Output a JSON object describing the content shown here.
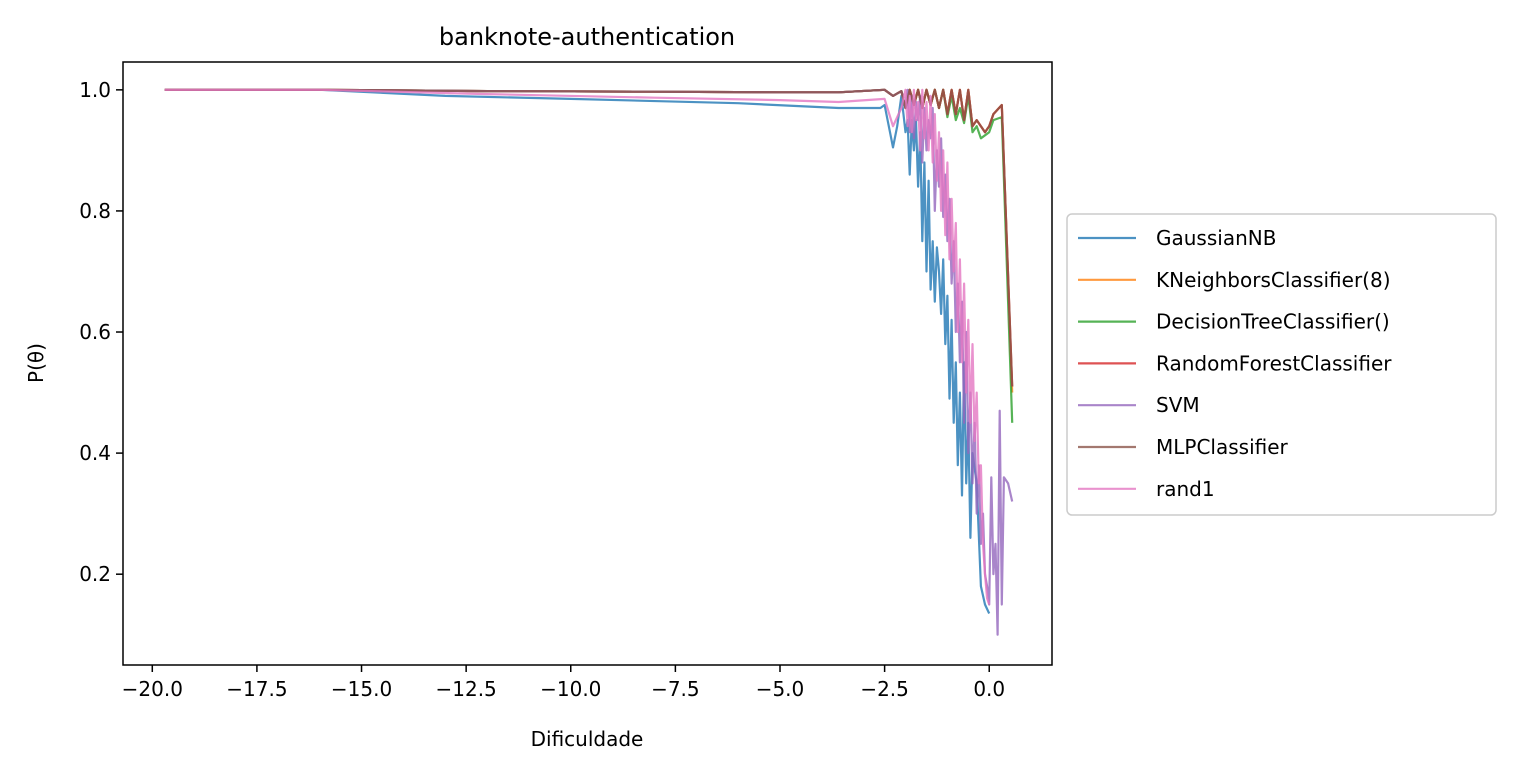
{
  "chart_data": {
    "type": "line",
    "title": "banknote-authentication",
    "xlabel": "Dificuldade",
    "ylabel": "P(θ)",
    "xlim": [
      -20.7,
      1.5
    ],
    "ylim": [
      0.05,
      1.046
    ],
    "xticks": [
      -20.0,
      -17.5,
      -15.0,
      -12.5,
      -10.0,
      -7.5,
      -5.0,
      -2.5,
      0.0
    ],
    "xtick_labels": [
      "−20.0",
      "−17.5",
      "−15.0",
      "−12.5",
      "−10.0",
      "−7.5",
      "−5.0",
      "−2.5",
      "0.0"
    ],
    "yticks": [
      0.2,
      0.4,
      0.6,
      0.8,
      1.0
    ],
    "ytick_labels": [
      "0.2",
      "0.4",
      "0.6",
      "0.8",
      "1.0"
    ],
    "grid": false,
    "legend_position": "right-outside",
    "series": [
      {
        "name": "GaussianNB",
        "color": "#1f77b4",
        "x": [
          -19.7,
          -16.0,
          -13.0,
          -10.0,
          -6.0,
          -3.6,
          -2.6,
          -2.5,
          -2.3,
          -2.2,
          -2.1,
          -2.0,
          -1.95,
          -1.9,
          -1.85,
          -1.8,
          -1.75,
          -1.7,
          -1.65,
          -1.6,
          -1.55,
          -1.5,
          -1.45,
          -1.4,
          -1.35,
          -1.3,
          -1.25,
          -1.2,
          -1.15,
          -1.1,
          -1.05,
          -1.0,
          -0.95,
          -0.9,
          -0.85,
          -0.8,
          -0.75,
          -0.7,
          -0.65,
          -0.6,
          -0.55,
          -0.5,
          -0.45,
          -0.4,
          -0.3,
          -0.2,
          -0.1,
          0.0
        ],
        "y": [
          1.0,
          1.0,
          0.99,
          0.985,
          0.978,
          0.97,
          0.97,
          0.975,
          0.905,
          0.94,
          0.99,
          0.93,
          0.95,
          0.86,
          0.95,
          0.9,
          0.95,
          0.84,
          0.93,
          0.75,
          0.88,
          0.7,
          0.85,
          0.67,
          0.75,
          0.65,
          0.74,
          0.7,
          0.63,
          0.72,
          0.58,
          0.66,
          0.49,
          0.62,
          0.45,
          0.55,
          0.38,
          0.5,
          0.33,
          0.55,
          0.35,
          0.45,
          0.26,
          0.4,
          0.35,
          0.18,
          0.15,
          0.135
        ]
      },
      {
        "name": "KNeighborsClassifier(8)",
        "color": "#ff7f0e",
        "x": [
          -19.7,
          -16.0,
          -12.0,
          -8.0,
          -5.0,
          -3.6,
          -2.5,
          -2.3,
          -2.1,
          -2.0,
          -1.9,
          -1.8,
          -1.7,
          -1.6,
          -1.5,
          -1.4,
          -1.3,
          -1.2,
          -1.1,
          -1.0,
          -0.9,
          -0.8,
          -0.7,
          -0.6,
          -0.5,
          -0.4,
          -0.3,
          -0.2,
          -0.1,
          0.0,
          0.1,
          0.3,
          0.55
        ],
        "y": [
          1.0,
          1.0,
          0.998,
          0.997,
          0.996,
          0.996,
          1.0,
          0.99,
          0.998,
          0.97,
          1.0,
          0.975,
          1.0,
          0.97,
          1.0,
          0.975,
          1.0,
          0.97,
          1.0,
          0.96,
          1.0,
          0.96,
          1.0,
          0.95,
          1.0,
          0.94,
          0.95,
          0.94,
          0.93,
          0.94,
          0.96,
          0.975,
          0.5
        ]
      },
      {
        "name": "DecisionTreeClassifier()",
        "color": "#2ca02c",
        "x": [
          -19.7,
          -16.0,
          -12.0,
          -8.0,
          -5.0,
          -3.6,
          -2.5,
          -2.3,
          -2.1,
          -2.0,
          -1.9,
          -1.8,
          -1.7,
          -1.6,
          -1.5,
          -1.4,
          -1.3,
          -1.2,
          -1.1,
          -1.0,
          -0.9,
          -0.8,
          -0.7,
          -0.6,
          -0.5,
          -0.4,
          -0.3,
          -0.2,
          -0.1,
          0.0,
          0.1,
          0.3,
          0.55
        ],
        "y": [
          1.0,
          1.0,
          0.998,
          0.997,
          0.996,
          0.996,
          1.0,
          0.99,
          0.998,
          0.97,
          1.0,
          0.975,
          1.0,
          0.97,
          1.0,
          0.975,
          1.0,
          0.97,
          1.0,
          0.955,
          0.99,
          0.95,
          0.97,
          0.945,
          0.99,
          0.93,
          0.94,
          0.92,
          0.925,
          0.93,
          0.95,
          0.955,
          0.45
        ]
      },
      {
        "name": "RandomForestClassifier",
        "color": "#d62728",
        "x": [
          -19.7,
          -16.0,
          -12.0,
          -8.0,
          -5.0,
          -3.6,
          -2.5,
          -2.3,
          -2.1,
          -2.0,
          -1.9,
          -1.8,
          -1.7,
          -1.6,
          -1.5,
          -1.4,
          -1.3,
          -1.2,
          -1.1,
          -1.0,
          -0.9,
          -0.8,
          -0.7,
          -0.6,
          -0.5,
          -0.4,
          -0.3,
          -0.2,
          -0.1,
          0.0,
          0.1,
          0.3,
          0.55
        ],
        "y": [
          1.0,
          1.0,
          0.998,
          0.997,
          0.996,
          0.996,
          1.0,
          0.99,
          0.998,
          0.97,
          1.0,
          0.975,
          1.0,
          0.97,
          1.0,
          0.975,
          1.0,
          0.97,
          1.0,
          0.96,
          1.0,
          0.96,
          1.0,
          0.95,
          1.0,
          0.94,
          0.95,
          0.94,
          0.93,
          0.94,
          0.96,
          0.975,
          0.51
        ]
      },
      {
        "name": "SVM",
        "color": "#9467bd",
        "x": [
          -19.7,
          -16.0,
          -12.0,
          -8.0,
          -5.0,
          -3.6,
          -2.5,
          -2.3,
          -2.1,
          -2.0,
          -1.95,
          -1.9,
          -1.85,
          -1.8,
          -1.75,
          -1.7,
          -1.65,
          -1.6,
          -1.55,
          -1.5,
          -1.45,
          -1.4,
          -1.35,
          -1.3,
          -1.25,
          -1.2,
          -1.15,
          -1.1,
          -1.05,
          -1.0,
          -0.95,
          -0.9,
          -0.85,
          -0.8,
          -0.75,
          -0.7,
          -0.65,
          -0.6,
          -0.55,
          -0.5,
          -0.45,
          -0.4,
          -0.35,
          -0.3,
          -0.25,
          -0.2,
          -0.15,
          -0.1,
          -0.05,
          0.0,
          0.05,
          0.1,
          0.15,
          0.2,
          0.25,
          0.3,
          0.35,
          0.45,
          0.55
        ],
        "y": [
          1.0,
          1.0,
          0.998,
          0.997,
          0.996,
          0.996,
          1.0,
          0.99,
          0.998,
          0.97,
          1.0,
          0.93,
          0.99,
          0.92,
          0.98,
          0.95,
          0.99,
          0.88,
          0.97,
          0.9,
          0.95,
          0.92,
          0.97,
          0.8,
          0.9,
          0.84,
          0.92,
          0.79,
          0.86,
          0.75,
          0.82,
          0.68,
          0.75,
          0.6,
          0.68,
          0.55,
          0.65,
          0.45,
          0.6,
          0.4,
          0.5,
          0.35,
          0.45,
          0.3,
          0.38,
          0.25,
          0.3,
          0.2,
          0.18,
          0.15,
          0.36,
          0.2,
          0.25,
          0.1,
          0.47,
          0.15,
          0.36,
          0.35,
          0.32
        ]
      },
      {
        "name": "MLPClassifier",
        "color": "#8c564b",
        "x": [
          -19.7,
          -16.0,
          -12.0,
          -8.0,
          -5.0,
          -3.6,
          -2.5,
          -2.3,
          -2.1,
          -2.0,
          -1.9,
          -1.8,
          -1.7,
          -1.6,
          -1.5,
          -1.4,
          -1.3,
          -1.2,
          -1.1,
          -1.0,
          -0.9,
          -0.8,
          -0.7,
          -0.6,
          -0.5,
          -0.4,
          -0.3,
          -0.2,
          -0.1,
          0.0,
          0.1,
          0.3,
          0.55
        ],
        "y": [
          1.0,
          1.0,
          0.998,
          0.997,
          0.996,
          0.996,
          1.0,
          0.99,
          0.998,
          0.97,
          1.0,
          0.975,
          1.0,
          0.97,
          1.0,
          0.975,
          1.0,
          0.97,
          1.0,
          0.96,
          1.0,
          0.96,
          1.0,
          0.95,
          1.0,
          0.94,
          0.95,
          0.94,
          0.93,
          0.94,
          0.96,
          0.975,
          0.51
        ]
      },
      {
        "name": "rand1",
        "color": "#e377c2",
        "x": [
          -19.7,
          -16.0,
          -12.0,
          -8.0,
          -5.0,
          -3.6,
          -2.5,
          -2.3,
          -2.1,
          -2.0,
          -1.95,
          -1.9,
          -1.85,
          -1.8,
          -1.75,
          -1.7,
          -1.65,
          -1.6,
          -1.55,
          -1.5,
          -1.45,
          -1.4,
          -1.35,
          -1.3,
          -1.25,
          -1.2,
          -1.15,
          -1.1,
          -1.05,
          -1.0,
          -0.95,
          -0.9,
          -0.85,
          -0.8,
          -0.75,
          -0.7,
          -0.65,
          -0.6,
          -0.55,
          -0.5,
          -0.45,
          -0.4,
          -0.35,
          -0.3,
          -0.25,
          -0.2,
          -0.15,
          -0.1,
          -0.05,
          0.0
        ],
        "y": [
          1.0,
          1.0,
          0.993,
          0.987,
          0.983,
          0.98,
          0.985,
          0.94,
          0.97,
          1.0,
          0.94,
          0.99,
          0.93,
          1.0,
          0.95,
          0.98,
          0.9,
          1.0,
          0.92,
          0.98,
          0.9,
          0.99,
          0.88,
          0.96,
          0.85,
          0.93,
          0.8,
          0.9,
          0.76,
          0.88,
          0.72,
          0.82,
          0.7,
          0.78,
          0.6,
          0.72,
          0.55,
          0.68,
          0.5,
          0.62,
          0.45,
          0.58,
          0.42,
          0.5,
          0.35,
          0.38,
          0.25,
          0.2,
          0.16,
          0.15
        ]
      }
    ]
  }
}
